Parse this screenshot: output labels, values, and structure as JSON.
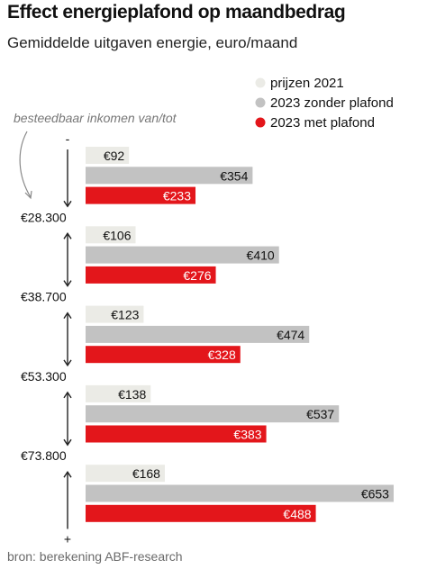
{
  "header": {
    "title": "Effect energieplafond op maandbedrag",
    "subtitle": "Gemiddelde uitgaven energie, euro/maand"
  },
  "footer": {
    "source": "bron: berekening ABF-research"
  },
  "chart_data": {
    "type": "bar",
    "orientation": "horizontal",
    "title": "Effect energieplafond op maandbedrag",
    "subtitle": "Gemiddelde uitgaven energie, euro/maand",
    "axis_note": "besteedbaar inkomen van/tot",
    "income_boundaries": [
      "€28.300",
      "€38.700",
      "€53.300",
      "€73.800"
    ],
    "top_marker": "-",
    "bottom_marker": "+",
    "value_prefix": "€",
    "xlim": [
      0,
      700
    ],
    "grid": false,
    "legend_position": "top-right",
    "series": [
      {
        "name": "prijzen 2021",
        "color": "#ebebe6",
        "label_color": "#111111",
        "values": [
          92,
          106,
          123,
          138,
          168
        ]
      },
      {
        "name": "2023 zonder plafond",
        "color": "#c2c2c2",
        "label_color": "#111111",
        "values": [
          354,
          410,
          474,
          537,
          653
        ]
      },
      {
        "name": "2023 met plafond",
        "color": "#e3161b",
        "label_color": "#ffffff",
        "values": [
          233,
          276,
          328,
          383,
          488
        ]
      }
    ]
  }
}
